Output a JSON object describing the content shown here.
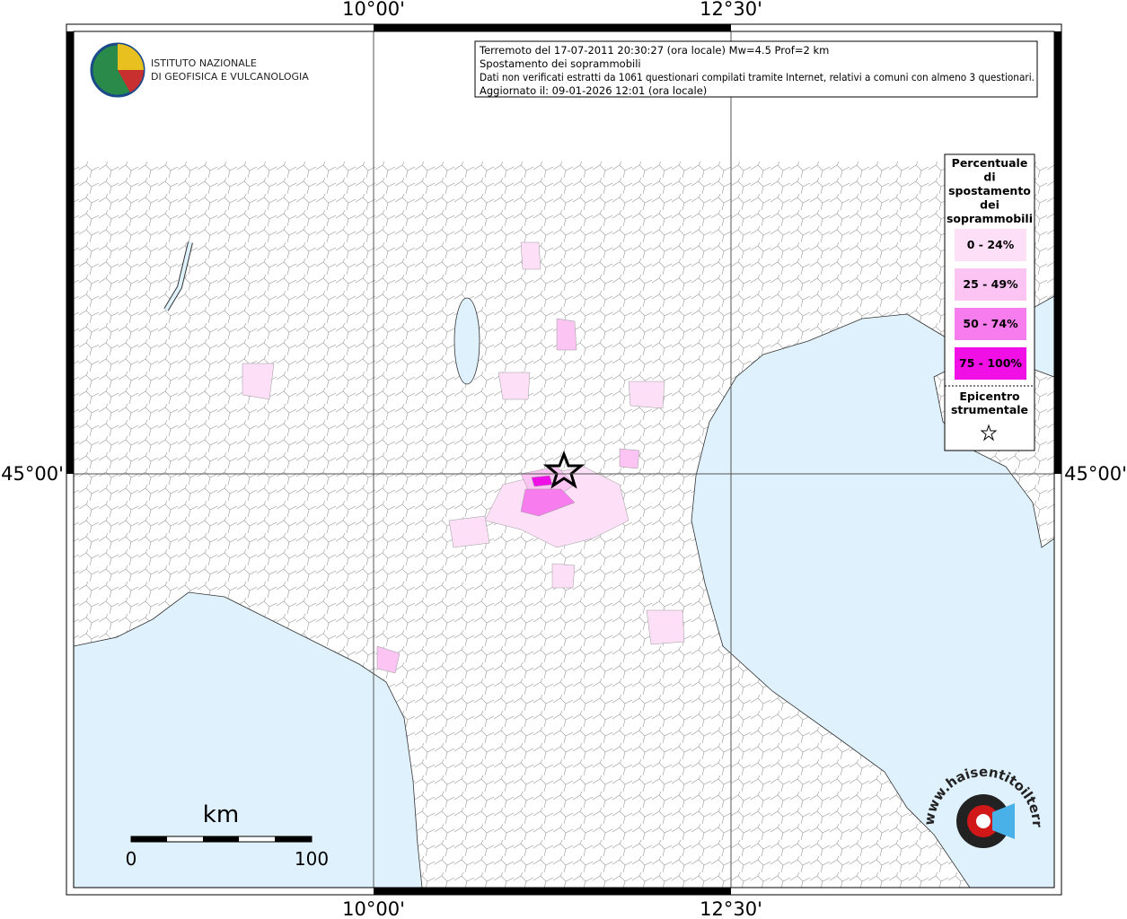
{
  "map": {
    "frame_labels": {
      "top": [
        "10°00'",
        "12°30'"
      ],
      "bottom": [
        "10°00'",
        "12°30'"
      ],
      "left": "45°00'",
      "right": "45°00'"
    },
    "info": [
      "Terremoto del 17-07-2011 20:30:27 (ora locale) Mw=4.5 Prof=2 km",
      "Spostamento dei soprammobili",
      "Dati non verificati estratti da 1061 questionari compilati tramite Internet, relativi a comuni con almeno 3 questionari.",
      "Aggiornato il: 09-01-2026 12:01 (ora locale)"
    ],
    "logo": [
      "ISTITUTO NAZIONALE",
      "DI GEOFISICA E VULCANOLOGIA"
    ],
    "legend": {
      "title": [
        "Percentuale",
        "di",
        "spostamento",
        "dei",
        "soprammobili"
      ],
      "items": [
        {
          "label": "0 - 24%",
          "color": "#fde0f7"
        },
        {
          "label": "25 - 49%",
          "color": "#fbc4f2"
        },
        {
          "label": "50 - 74%",
          "color": "#f77ced"
        },
        {
          "label": "75 - 100%",
          "color": "#f010e6"
        }
      ],
      "epicenter": [
        "Epicentro",
        "strumentale"
      ]
    },
    "scale": {
      "unit": "km",
      "labels": [
        "0",
        "100"
      ]
    },
    "site": "www.haisentitoilterremoto.it"
  }
}
